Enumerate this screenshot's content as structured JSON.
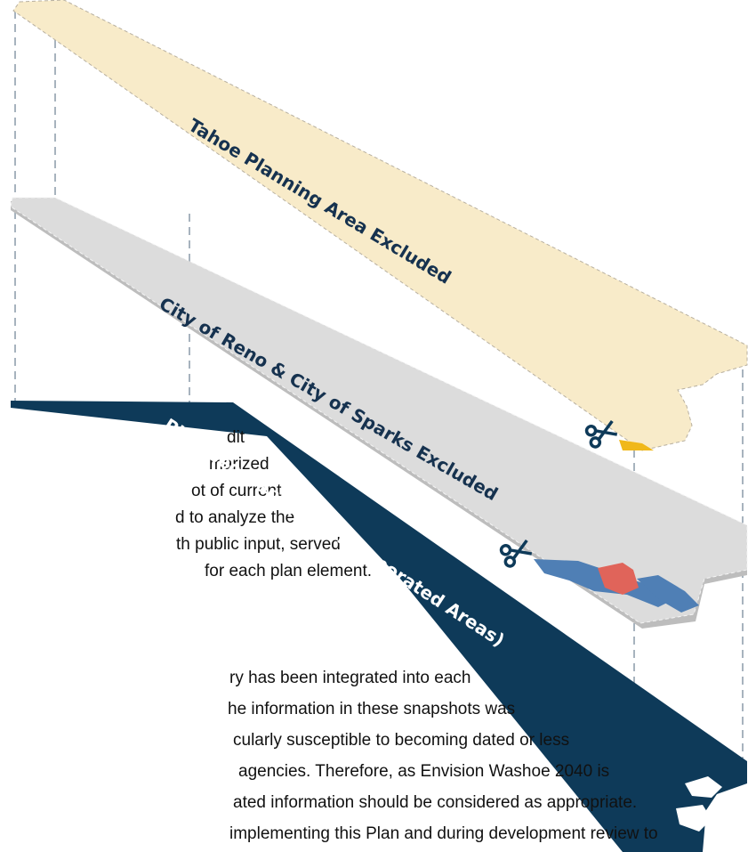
{
  "layers": [
    {
      "label": "Tahoe Planning Area Excluded"
    },
    {
      "label": "City of Reno & City of Sparks Excluded"
    },
    {
      "label": "Plan Geography (Unincorporated Areas)"
    }
  ],
  "body_text": {
    "paragraph_1": [
      "dit",
      "marized",
      "ot of current",
      "d to analyze the",
      "th public input, served",
      "for each plan element."
    ],
    "paragraph_2": [
      "ry has been integrated into each",
      "he information in these snapshots was",
      "cularly susceptible to becoming dated or less",
      "agencies. Therefore, as Envision Washoe 2040 is",
      "ated information should be considered as appropriate.",
      "implementing this Plan and during development review to"
    ]
  }
}
